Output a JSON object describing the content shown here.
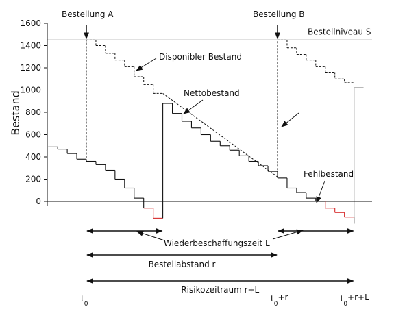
{
  "chart_data": {
    "type": "line",
    "title": "",
    "xlabel": "",
    "ylabel": "Bestand",
    "ylim": [
      -200,
      1600
    ],
    "yticks": [
      0,
      200,
      400,
      600,
      800,
      1000,
      1200,
      1400,
      1600
    ],
    "grid": false,
    "order_level": {
      "label": "Bestellniveau S",
      "value": 1450
    },
    "events": [
      {
        "label": "Bestellung A",
        "x": 0
      },
      {
        "label": "Bestellung B",
        "x": 1
      }
    ],
    "series": [
      {
        "name": "Nettobestand",
        "x": [
          -0.2,
          -0.15,
          -0.15,
          -0.1,
          -0.1,
          -0.05,
          -0.05,
          0,
          0,
          0.05,
          0.05,
          0.1,
          0.1,
          0.15,
          0.15,
          0.2,
          0.2,
          0.25,
          0.25,
          0.3,
          0.3,
          0.35,
          0.35,
          0.4,
          0.4,
          0.4,
          0.4,
          0.45,
          0.45,
          0.5,
          0.5,
          0.55,
          0.55,
          0.6,
          0.6,
          0.65,
          0.65,
          0.7,
          0.7,
          0.75,
          0.75,
          0.8,
          0.8,
          0.85,
          0.85,
          0.9,
          0.9,
          0.95,
          0.95,
          1,
          1,
          1.05,
          1.05,
          1.1,
          1.1,
          1.15,
          1.15,
          1.2,
          1.2,
          1.25,
          1.25,
          1.3,
          1.3,
          1.35,
          1.35,
          1.4,
          1.4,
          1.4,
          1.4,
          1.45
        ],
        "y": [
          490,
          490,
          470,
          470,
          430,
          430,
          380,
          380,
          360,
          360,
          330,
          330,
          280,
          280,
          200,
          200,
          120,
          120,
          30,
          30,
          -60,
          -60,
          -150,
          -150,
          880,
          880,
          880,
          880,
          790,
          790,
          720,
          720,
          660,
          660,
          600,
          600,
          540,
          540,
          500,
          500,
          460,
          460,
          410,
          410,
          360,
          360,
          320,
          320,
          270,
          270,
          210,
          210,
          120,
          120,
          80,
          80,
          30,
          30,
          0,
          0,
          -60,
          -60,
          -100,
          -100,
          -140,
          -140,
          -200,
          -200,
          1020,
          1020
        ]
      },
      {
        "name": "Disponibler Bestand",
        "x": [
          0,
          0,
          0.05,
          0.05,
          0.1,
          0.1,
          0.15,
          0.15,
          0.2,
          0.2,
          0.25,
          0.25,
          0.3,
          0.3,
          0.35,
          0.35,
          0.4,
          1,
          1,
          1.05,
          1.05,
          1.1,
          1.1,
          1.15,
          1.15,
          1.2,
          1.2,
          1.25,
          1.25,
          1.3,
          1.3,
          1.35,
          1.35,
          1.4
        ],
        "y": [
          360,
          1450,
          1450,
          1400,
          1400,
          1330,
          1330,
          1270,
          1270,
          1210,
          1210,
          1120,
          1120,
          1050,
          1050,
          970,
          970,
          220,
          1450,
          1450,
          1380,
          1380,
          1320,
          1320,
          1270,
          1270,
          1210,
          1210,
          1160,
          1160,
          1100,
          1100,
          1070,
          1070
        ]
      }
    ],
    "shortage_label": "Fehlbestand",
    "annotations": [
      {
        "text": "Disponibler Bestand"
      },
      {
        "text": "Nettobestand"
      },
      {
        "text": "Fehlbestand"
      },
      {
        "text": "Wiederbeschaffungszeit L"
      }
    ],
    "intervals": [
      {
        "label": "Wiederbeschaffungszeit L",
        "from": 0,
        "to": 0.4
      },
      {
        "label": "Wiederbeschaffungszeit L",
        "from": 1,
        "to": 1.4
      },
      {
        "label": "Bestellabstand r",
        "from": 0,
        "to": 1
      },
      {
        "label": "Risikozeitraum r+L",
        "from": 0,
        "to": 1.4
      }
    ],
    "time_labels": [
      {
        "main": "t",
        "sub": "0",
        "suffix": ""
      },
      {
        "main": "t",
        "sub": "0",
        "suffix": "+r"
      },
      {
        "main": "t",
        "sub": "0",
        "suffix": "+r+L"
      }
    ]
  }
}
